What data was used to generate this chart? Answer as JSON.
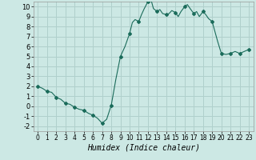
{
  "title": "",
  "xlabel": "Humidex (Indice chaleur)",
  "ylabel": "",
  "background_color": "#cce8e4",
  "grid_color": "#b0d0cc",
  "line_color": "#1a6b5a",
  "marker_color": "#1a6b5a",
  "xlim": [
    -0.5,
    23.5
  ],
  "ylim": [
    -2.5,
    10.5
  ],
  "xticks": [
    0,
    1,
    2,
    3,
    4,
    5,
    6,
    7,
    8,
    9,
    10,
    11,
    12,
    13,
    14,
    15,
    16,
    17,
    18,
    19,
    20,
    21,
    22,
    23
  ],
  "yticks": [
    -2,
    -1,
    0,
    1,
    2,
    3,
    4,
    5,
    6,
    7,
    8,
    9,
    10
  ],
  "x": [
    0,
    0.5,
    1,
    1.5,
    2,
    2.5,
    3,
    3.5,
    4,
    4.5,
    5,
    5.5,
    6,
    6.5,
    7,
    7.5,
    8,
    8.5,
    9,
    9.5,
    10,
    10.3,
    10.6,
    11,
    11.3,
    11.6,
    12,
    12.3,
    12.6,
    13,
    13.3,
    13.6,
    14,
    14.3,
    14.6,
    15,
    15.3,
    15.6,
    16,
    16.3,
    16.6,
    17,
    17.3,
    17.6,
    18,
    18.3,
    18.6,
    19,
    19.3,
    19.6,
    20,
    20.5,
    21,
    21.5,
    22,
    22.5,
    23
  ],
  "y": [
    2.0,
    1.8,
    1.5,
    1.4,
    0.9,
    0.7,
    0.3,
    0.2,
    -0.1,
    -0.3,
    -0.4,
    -0.7,
    -0.9,
    -1.2,
    -1.7,
    -1.3,
    0.1,
    2.7,
    5.0,
    6.0,
    7.3,
    8.4,
    8.7,
    8.5,
    9.2,
    9.8,
    10.5,
    10.8,
    9.8,
    9.5,
    9.7,
    9.3,
    9.2,
    9.3,
    9.6,
    9.4,
    9.0,
    9.5,
    10.0,
    10.2,
    9.8,
    9.3,
    9.5,
    9.0,
    9.5,
    9.2,
    8.8,
    8.5,
    7.5,
    6.5,
    5.3,
    5.2,
    5.3,
    5.5,
    5.3,
    5.5,
    5.7
  ],
  "marker_x": [
    0,
    1,
    2,
    3,
    4,
    5,
    6,
    7,
    8,
    9,
    10,
    11,
    12,
    13,
    14,
    15,
    16,
    17,
    18,
    19,
    20,
    21,
    22,
    23
  ],
  "marker_y": [
    2.0,
    1.5,
    0.9,
    0.3,
    -0.1,
    -0.4,
    -0.9,
    -1.7,
    0.1,
    5.0,
    7.3,
    8.5,
    10.5,
    9.5,
    9.2,
    9.4,
    10.0,
    9.3,
    9.5,
    8.5,
    5.3,
    5.3,
    5.3,
    5.7
  ],
  "xlabel_fontsize": 7,
  "tick_fontsize": 5.5
}
